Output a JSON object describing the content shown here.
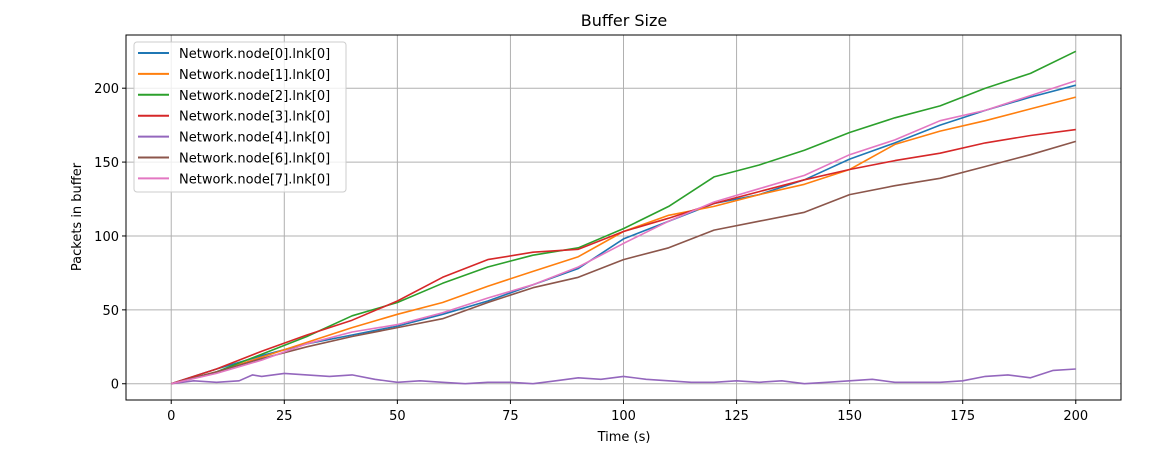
{
  "chart_data": {
    "type": "line",
    "title": "Buffer Size",
    "xlabel": "Time (s)",
    "ylabel": "Packets in buffer",
    "xlim": [
      -10,
      210
    ],
    "ylim": [
      -11,
      236
    ],
    "xticks": [
      0,
      25,
      50,
      75,
      100,
      125,
      150,
      175,
      200
    ],
    "yticks": [
      0,
      50,
      100,
      150,
      200
    ],
    "grid": true,
    "legend_position": "upper-left",
    "series": [
      {
        "name": "Network.node[0].lnk[0]",
        "color": "#1f77b4",
        "x": [
          0,
          10,
          20,
          30,
          40,
          50,
          60,
          70,
          80,
          90,
          100,
          110,
          120,
          130,
          140,
          150,
          160,
          170,
          180,
          190,
          200
        ],
        "y": [
          0,
          10,
          19,
          27,
          33,
          39,
          47,
          56,
          67,
          78,
          98,
          110,
          122,
          128,
          138,
          152,
          163,
          175,
          185,
          194,
          202
        ]
      },
      {
        "name": "Network.node[1].lnk[0]",
        "color": "#ff7f0e",
        "x": [
          0,
          10,
          20,
          30,
          40,
          50,
          60,
          70,
          80,
          90,
          100,
          110,
          120,
          130,
          140,
          150,
          160,
          170,
          180,
          190,
          200
        ],
        "y": [
          0,
          8,
          18,
          28,
          38,
          47,
          55,
          66,
          76,
          86,
          103,
          114,
          120,
          128,
          135,
          145,
          162,
          171,
          178,
          186,
          194
        ]
      },
      {
        "name": "Network.node[2].lnk[0]",
        "color": "#2ca02c",
        "x": [
          0,
          10,
          20,
          30,
          40,
          50,
          60,
          70,
          80,
          90,
          100,
          110,
          120,
          130,
          140,
          150,
          160,
          170,
          180,
          190,
          200
        ],
        "y": [
          0,
          8,
          20,
          32,
          46,
          55,
          68,
          79,
          87,
          92,
          105,
          120,
          140,
          148,
          158,
          170,
          180,
          188,
          200,
          210,
          225
        ]
      },
      {
        "name": "Network.node[3].lnk[0]",
        "color": "#d62728",
        "x": [
          0,
          10,
          20,
          30,
          40,
          50,
          60,
          70,
          80,
          90,
          100,
          110,
          120,
          130,
          140,
          150,
          160,
          170,
          180,
          190,
          200
        ],
        "y": [
          0,
          10,
          22,
          33,
          43,
          56,
          72,
          84,
          89,
          91,
          103,
          112,
          122,
          130,
          138,
          145,
          151,
          156,
          163,
          168,
          172
        ]
      },
      {
        "name": "Network.node[4].lnk[0]",
        "color": "#9467bd",
        "x": [
          0,
          5,
          10,
          15,
          18,
          20,
          25,
          30,
          35,
          40,
          45,
          50,
          55,
          60,
          65,
          70,
          75,
          80,
          85,
          90,
          95,
          100,
          105,
          110,
          115,
          120,
          125,
          130,
          135,
          140,
          145,
          150,
          155,
          160,
          165,
          170,
          175,
          180,
          185,
          190,
          195,
          200
        ],
        "y": [
          0,
          2,
          1,
          2,
          6,
          5,
          7,
          6,
          5,
          6,
          3,
          1,
          2,
          1,
          0,
          1,
          1,
          0,
          2,
          4,
          3,
          5,
          3,
          2,
          1,
          1,
          2,
          1,
          2,
          0,
          1,
          2,
          3,
          1,
          1,
          1,
          2,
          5,
          6,
          4,
          9,
          10
        ]
      },
      {
        "name": "Network.node[6].lnk[0]",
        "color": "#8c564b",
        "x": [
          0,
          10,
          20,
          30,
          40,
          50,
          60,
          70,
          80,
          90,
          100,
          110,
          120,
          130,
          140,
          150,
          160,
          170,
          180,
          190,
          200
        ],
        "y": [
          0,
          8,
          17,
          25,
          32,
          38,
          44,
          55,
          65,
          72,
          84,
          92,
          104,
          110,
          116,
          128,
          134,
          139,
          147,
          155,
          164
        ]
      },
      {
        "name": "Network.node[7].lnk[0]",
        "color": "#e377c2",
        "x": [
          0,
          10,
          20,
          30,
          40,
          50,
          60,
          70,
          80,
          90,
          100,
          110,
          120,
          130,
          140,
          150,
          160,
          170,
          180,
          190,
          200
        ],
        "y": [
          0,
          7,
          16,
          27,
          35,
          40,
          48,
          58,
          67,
          79,
          95,
          110,
          123,
          132,
          141,
          155,
          165,
          178,
          185,
          195,
          205
        ]
      }
    ]
  }
}
